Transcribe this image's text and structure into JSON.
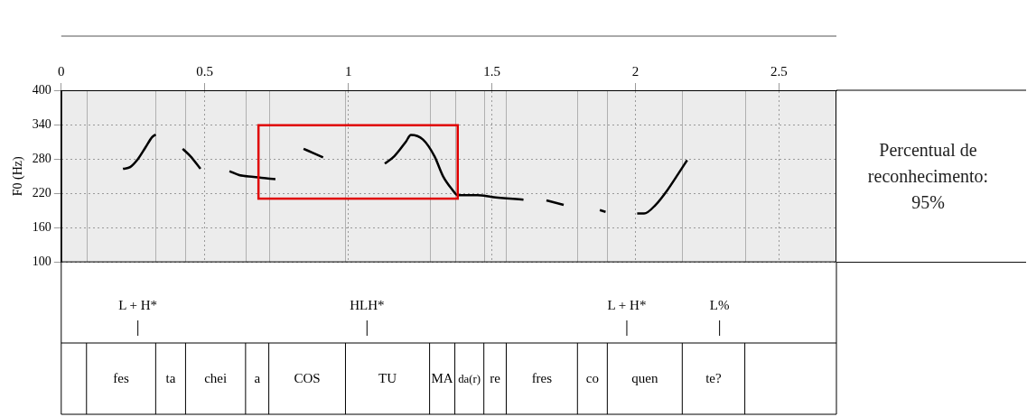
{
  "chart_data": {
    "type": "line",
    "y_label": "F0 (Hz)",
    "xlim": [
      0,
      2.7
    ],
    "xticks": [
      0,
      0.5,
      1,
      1.5,
      2,
      2.5
    ],
    "ylim": [
      100,
      400
    ],
    "yticks": [
      100,
      160,
      220,
      280,
      340,
      400
    ],
    "grid": true,
    "series": [
      {
        "color": "#000000",
        "marker": "none",
        "line_style": "solid",
        "x": [
          0.215,
          0.24,
          0.267,
          0.293,
          0.316,
          0.329,
          0.38,
          0.423,
          0.45,
          0.485,
          0.53,
          0.586,
          0.62,
          0.67,
          0.72,
          0.746,
          0.8,
          0.844,
          0.88,
          0.912,
          1.0,
          1.127,
          1.16,
          1.2,
          1.218,
          1.26,
          1.3,
          1.33,
          1.36,
          1.381,
          1.45,
          1.5,
          1.61,
          1.65,
          1.69,
          1.75,
          1.8,
          1.876,
          1.896,
          1.95,
          2.006,
          2.03,
          2.07,
          2.11,
          2.15,
          2.18
        ],
        "values": [
          263,
          266,
          280,
          300,
          318,
          323,
          null,
          298,
          285,
          263,
          null,
          259,
          252,
          249,
          246,
          245,
          null,
          298,
          290,
          283,
          null,
          272,
          285,
          310,
          322,
          314,
          285,
          250,
          228,
          217,
          217,
          214,
          209,
          null,
          208,
          200,
          null,
          191,
          188,
          null,
          185,
          185,
          200,
          225,
          255,
          278
        ]
      }
    ],
    "highlight_box": {
      "xlim": [
        0.687,
        1.381
      ],
      "ylim": [
        211,
        339
      ]
    },
    "tone_labels": [
      {
        "text": "L + H*",
        "time": 0.267
      },
      {
        "text": "HLH*",
        "time": 1.065
      },
      {
        "text": "L + H*",
        "time": 1.97
      },
      {
        "text": "L%",
        "time": 2.293
      }
    ],
    "syllables": [
      {
        "text": "fes",
        "start": 0.088,
        "end": 0.329
      },
      {
        "text": "ta",
        "start": 0.329,
        "end": 0.433
      },
      {
        "text": "chei",
        "start": 0.433,
        "end": 0.642
      },
      {
        "text": "a",
        "start": 0.642,
        "end": 0.723
      },
      {
        "text": "COS",
        "start": 0.723,
        "end": 0.99
      },
      {
        "text": "TU",
        "start": 0.99,
        "end": 1.283
      },
      {
        "text": "MA",
        "start": 1.283,
        "end": 1.371
      },
      {
        "text": "da(r)",
        "start": 1.371,
        "end": 1.472
      },
      {
        "text": "re",
        "start": 1.472,
        "end": 1.55
      },
      {
        "text": "fres",
        "start": 1.55,
        "end": 1.798
      },
      {
        "text": "co",
        "start": 1.798,
        "end": 1.902
      },
      {
        "text": "quen",
        "start": 1.902,
        "end": 2.163
      },
      {
        "text": "te?",
        "start": 2.163,
        "end": 2.381
      }
    ],
    "side_text": "Percentual de reconhecimento: 95%"
  }
}
